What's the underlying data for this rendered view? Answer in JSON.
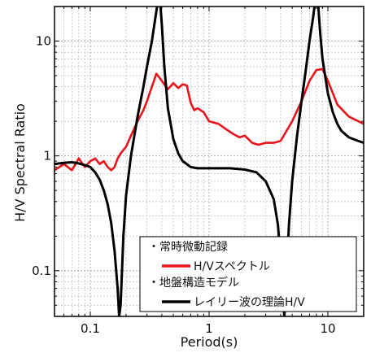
{
  "chart_data": {
    "type": "line",
    "title": "",
    "xlabel": "Period(s)",
    "ylabel": "H/V  Spectral Ratio",
    "xscale": "log",
    "yscale": "log",
    "xlim": [
      0.05,
      20
    ],
    "ylim": [
      0.04,
      20
    ],
    "x_ticks": [
      {
        "value": 0.1,
        "label": "0.1"
      },
      {
        "value": 1,
        "label": "1"
      },
      {
        "value": 10,
        "label": "10"
      }
    ],
    "y_ticks": [
      {
        "value": 0.1,
        "label": "0.1"
      },
      {
        "value": 1,
        "label": "1"
      },
      {
        "value": 10,
        "label": "10"
      }
    ],
    "grid": true,
    "legend": {
      "position": "bottom-right",
      "entries": [
        {
          "kind": "header",
          "text": "・常時微動記録"
        },
        {
          "kind": "line",
          "series": 0,
          "text": "H/Vスペクトル"
        },
        {
          "kind": "header",
          "text": "・地盤構造モデル"
        },
        {
          "kind": "line",
          "series": 1,
          "text": "レイリー波の理論H/V"
        }
      ]
    },
    "series": [
      {
        "name": "H/Vスペクトル",
        "color": "#e8141b",
        "x": [
          0.05,
          0.06,
          0.07,
          0.08,
          0.09,
          0.1,
          0.11,
          0.12,
          0.13,
          0.14,
          0.15,
          0.16,
          0.17,
          0.18,
          0.2,
          0.22,
          0.25,
          0.28,
          0.3,
          0.33,
          0.36,
          0.4,
          0.45,
          0.5,
          0.55,
          0.6,
          0.65,
          0.7,
          0.75,
          0.8,
          0.9,
          1.0,
          1.2,
          1.4,
          1.6,
          1.8,
          2.0,
          2.3,
          2.6,
          3.0,
          3.5,
          4.0,
          5.0,
          6.0,
          7.0,
          8.0,
          9.0,
          10.0,
          12.0,
          15.0,
          20.0
        ],
        "y": [
          0.75,
          0.85,
          0.75,
          0.95,
          0.8,
          0.9,
          0.95,
          0.85,
          0.9,
          0.8,
          0.75,
          0.8,
          0.95,
          1.05,
          1.2,
          1.5,
          2.0,
          2.5,
          3.0,
          4.0,
          5.2,
          4.5,
          3.8,
          4.3,
          3.9,
          4.2,
          4.1,
          2.9,
          2.5,
          2.6,
          2.4,
          2.0,
          1.9,
          1.7,
          1.55,
          1.45,
          1.5,
          1.3,
          1.25,
          1.3,
          1.3,
          1.35,
          2.0,
          3.0,
          4.5,
          5.6,
          5.7,
          4.5,
          2.8,
          2.2,
          1.9
        ]
      },
      {
        "name": "レイリー波の理論H/V",
        "color": "#000000",
        "x": [
          0.05,
          0.06,
          0.07,
          0.08,
          0.09,
          0.1,
          0.11,
          0.12,
          0.13,
          0.14,
          0.15,
          0.16,
          0.17,
          0.175,
          0.18,
          0.19,
          0.2,
          0.22,
          0.25,
          0.28,
          0.3,
          0.33,
          0.35,
          0.37,
          0.38,
          0.39,
          0.4,
          0.42,
          0.45,
          0.5,
          0.55,
          0.6,
          0.7,
          0.8,
          0.9,
          1.0,
          1.2,
          1.5,
          2.0,
          2.5,
          3.0,
          3.5,
          3.8,
          4.0,
          4.2,
          4.3,
          4.5,
          4.7,
          5.0,
          5.5,
          6.0,
          6.5,
          7.0,
          7.5,
          7.8,
          8.0,
          8.3,
          8.6,
          9.0,
          10.0,
          11.0,
          12.0,
          13.0,
          15.0,
          18.0,
          20.0
        ],
        "y": [
          0.85,
          0.87,
          0.88,
          0.86,
          0.83,
          0.8,
          0.72,
          0.62,
          0.5,
          0.38,
          0.26,
          0.15,
          0.07,
          0.04,
          0.05,
          0.2,
          0.45,
          1.0,
          2.2,
          4.0,
          6.0,
          10.0,
          15.0,
          22.0,
          25.0,
          20.0,
          14.0,
          6.0,
          2.6,
          1.4,
          1.05,
          0.9,
          0.8,
          0.78,
          0.78,
          0.78,
          0.78,
          0.78,
          0.76,
          0.72,
          0.6,
          0.42,
          0.25,
          0.12,
          0.05,
          0.04,
          0.1,
          0.25,
          0.6,
          1.5,
          3.0,
          5.5,
          10.0,
          16.0,
          22.0,
          25.0,
          20.0,
          12.0,
          7.0,
          3.5,
          2.4,
          1.9,
          1.65,
          1.45,
          1.35,
          1.3
        ]
      }
    ]
  }
}
